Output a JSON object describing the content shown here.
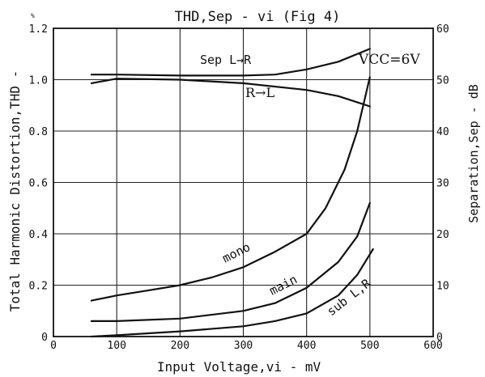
{
  "chart_data": {
    "type": "line",
    "title": "THD,Sep - vi (Fig 4)",
    "xlabel": "Input Voltage,vi - mV",
    "ylabel_left": "Total Harmonic Distortion,THD -",
    "ylabel_left_unit": "%",
    "ylabel_right": "Separation,Sep - dB",
    "annotation": "VCC=6V",
    "xlim": [
      0,
      600
    ],
    "ylim_left": [
      0,
      1.2
    ],
    "ylim_right": [
      0,
      60
    ],
    "x_ticks": [
      "0",
      "100",
      "200",
      "300",
      "400",
      "500",
      "600"
    ],
    "y_left_ticks": [
      "0",
      "0.2",
      "0.4",
      "0.6",
      "0.8",
      "1.0",
      "1.2"
    ],
    "y_right_ticks": [
      "0",
      "10",
      "20",
      "30",
      "40",
      "50",
      "60"
    ],
    "grid": true,
    "series": [
      {
        "name": "Sep L→R",
        "axis": "right",
        "x": [
          60,
          100,
          200,
          300,
          350,
          400,
          450,
          500
        ],
        "y": [
          51,
          51,
          50.8,
          50.8,
          51,
          52,
          53.5,
          56
        ]
      },
      {
        "name": "R→L",
        "axis": "right",
        "x": [
          60,
          100,
          200,
          300,
          400,
          450,
          500
        ],
        "y": [
          49.3,
          50.2,
          50,
          49.3,
          48,
          46.8,
          44.8
        ]
      },
      {
        "name": "mono",
        "axis": "left",
        "x": [
          60,
          100,
          150,
          200,
          250,
          300,
          350,
          400,
          430,
          460,
          480,
          500
        ],
        "y": [
          0.14,
          0.16,
          0.18,
          0.2,
          0.23,
          0.27,
          0.33,
          0.4,
          0.5,
          0.65,
          0.8,
          1.01
        ]
      },
      {
        "name": "main",
        "axis": "left",
        "x": [
          60,
          100,
          200,
          300,
          350,
          400,
          450,
          480,
          500
        ],
        "y": [
          0.06,
          0.06,
          0.07,
          0.1,
          0.13,
          0.19,
          0.29,
          0.39,
          0.52
        ]
      },
      {
        "name": "sub L,R",
        "axis": "left",
        "x": [
          60,
          100,
          200,
          300,
          350,
          400,
          450,
          480,
          505
        ],
        "y": [
          0,
          0.005,
          0.02,
          0.04,
          0.06,
          0.09,
          0.16,
          0.24,
          0.34
        ]
      }
    ]
  }
}
